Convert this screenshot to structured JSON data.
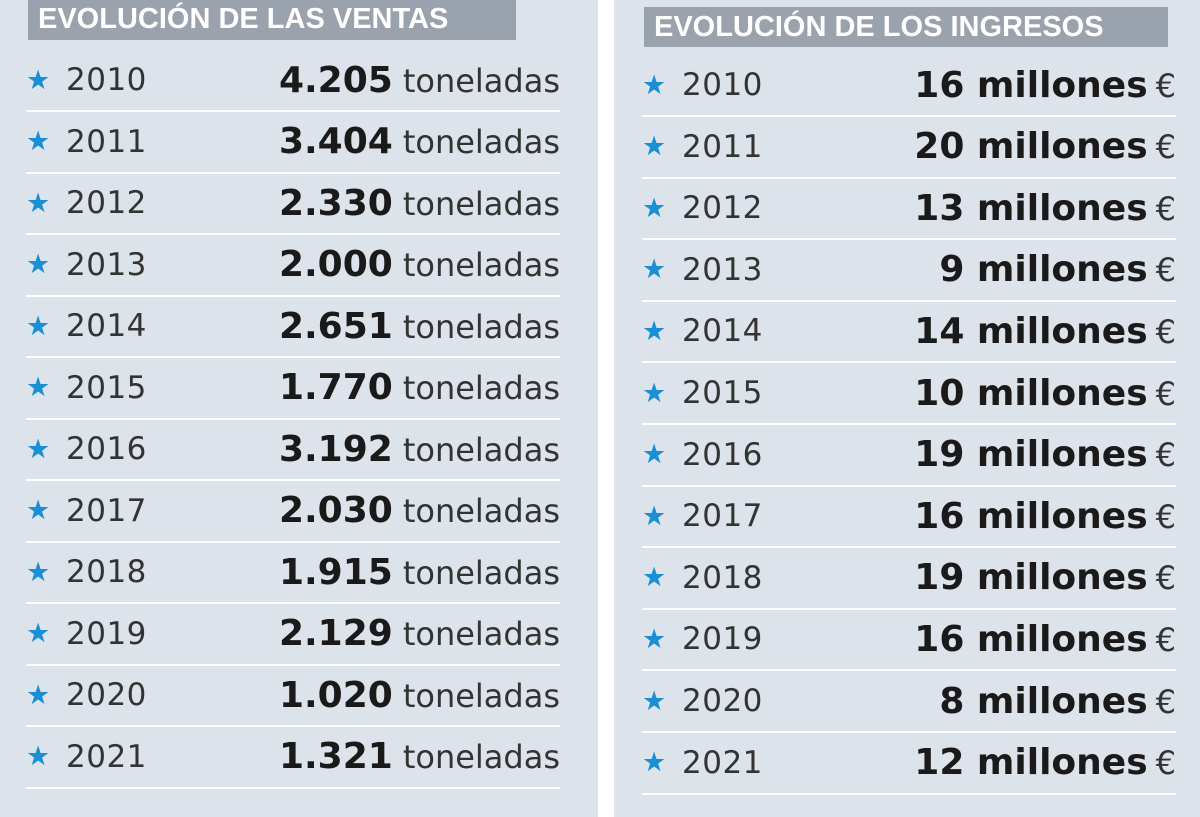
{
  "sales": {
    "title": "EVOLUCIÓN DE LAS VENTAS",
    "unit": "toneladas",
    "rows": [
      {
        "year": "2010",
        "value": "4.205"
      },
      {
        "year": "2011",
        "value": "3.404"
      },
      {
        "year": "2012",
        "value": "2.330"
      },
      {
        "year": "2013",
        "value": "2.000"
      },
      {
        "year": "2014",
        "value": "2.651"
      },
      {
        "year": "2015",
        "value": "1.770"
      },
      {
        "year": "2016",
        "value": "3.192"
      },
      {
        "year": "2017",
        "value": "2.030"
      },
      {
        "year": "2018",
        "value": "1.915"
      },
      {
        "year": "2019",
        "value": "2.129"
      },
      {
        "year": "2020",
        "value": "1.020"
      },
      {
        "year": "2021",
        "value": "1.321"
      }
    ]
  },
  "income": {
    "title": "EVOLUCIÓN DE LOS INGRESOS",
    "unit": "€",
    "rows": [
      {
        "year": "2010",
        "value": "16 millones"
      },
      {
        "year": "2011",
        "value": "20 millones"
      },
      {
        "year": "2012",
        "value": "13 millones"
      },
      {
        "year": "2013",
        "value": "9 millones"
      },
      {
        "year": "2014",
        "value": "14 millones"
      },
      {
        "year": "2015",
        "value": "10 millones"
      },
      {
        "year": "2016",
        "value": "19 millones"
      },
      {
        "year": "2017",
        "value": "16 millones"
      },
      {
        "year": "2018",
        "value": "19 millones"
      },
      {
        "year": "2019",
        "value": "16 millones"
      },
      {
        "year": "2020",
        "value": "8 millones"
      },
      {
        "year": "2021",
        "value": "12 millones"
      }
    ]
  },
  "icons": {
    "bullet": "star-icon",
    "bullet_color": "#1b8fd4"
  },
  "colors": {
    "background": "#dde3ea",
    "heading_bg": "#9aa3ad",
    "divider": "#ffffff"
  }
}
